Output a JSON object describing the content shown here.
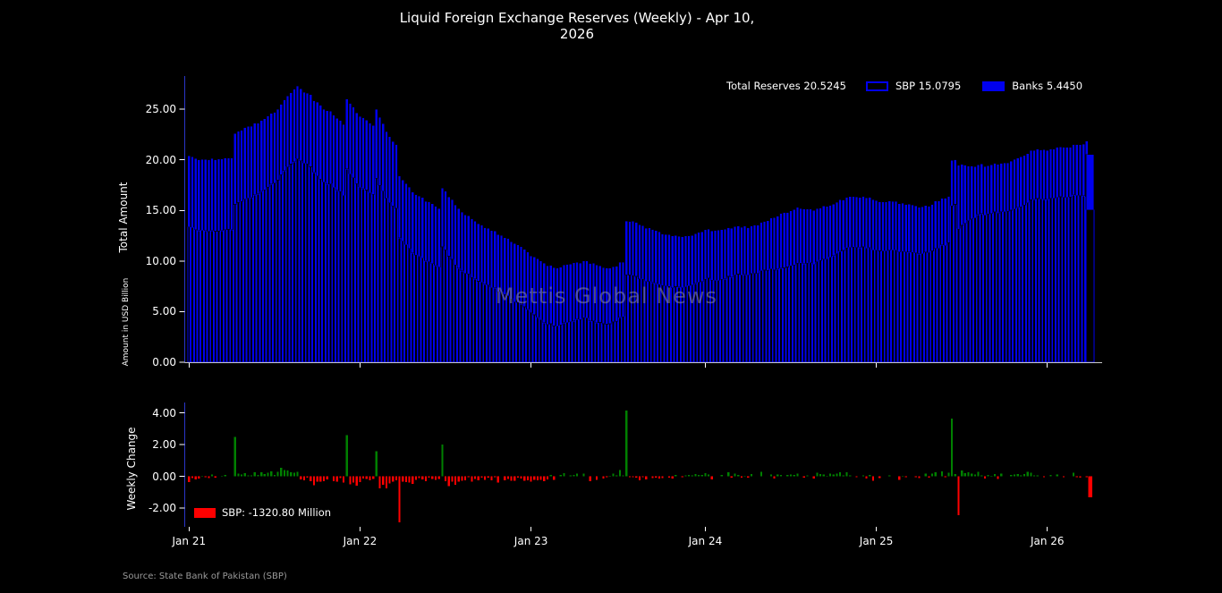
{
  "title": "Liquid Foreign Exchange Reserves (Weekly) - Apr 10, 2026",
  "watermark": "Mettis Global News",
  "source": "Source: State Bank of Pakistan (SBP)",
  "legend": {
    "total_label": "Total Reserves 20.5245",
    "sbp_label": "SBP 15.0795",
    "banks_label": "Banks 5.4450"
  },
  "bottom_legend_label": "SBP: -1320.80 Million",
  "axes": {
    "top": {
      "ylabel_primary": "Total Amount",
      "ylabel_secondary": "Amount in USD Billion",
      "ytick_labels": [
        "0.00",
        "5.00",
        "10.00",
        "15.00",
        "20.00",
        "25.00"
      ],
      "ytick_values": [
        0,
        5,
        10,
        15,
        20,
        25
      ],
      "ylim": [
        0,
        28.3
      ]
    },
    "bottom": {
      "ylabel": "Weekly Change",
      "ytick_labels": [
        "4.00",
        "2.00",
        "0.00",
        "-2.00"
      ],
      "ytick_values": [
        4,
        2,
        0,
        -2
      ],
      "ylim": [
        -3.2,
        4.7
      ]
    },
    "x": {
      "tick_labels": [
        "Jan 21",
        "Jan 22",
        "Jan 23",
        "Jan 24",
        "Jan 25",
        "Jan 26"
      ],
      "tick_weeks": [
        0,
        52,
        104,
        157,
        209,
        261
      ]
    }
  },
  "colors": {
    "background": "#000000",
    "bar_blue": "#0000ee",
    "positive_green": "#008000",
    "negative_red": "#ff0000",
    "spine_blue": "#2a35c8",
    "spine_white": "#cccccc",
    "text": "#ffffff",
    "muted": "#9a9a9a"
  },
  "chart_data": [
    {
      "type": "bar",
      "stacked": true,
      "title": "Liquid Foreign Exchange Reserves (Weekly) - Apr 10, 2026",
      "ylabel": "Total Amount (Amount in USD Billion)",
      "ylim": [
        0,
        28.3
      ],
      "weeks_total": 275,
      "x_range_labels": [
        "Jan 21",
        "Jan 26"
      ],
      "latest": {
        "total": 20.5245,
        "sbp": 15.0795,
        "banks": 5.445
      },
      "series_anchors": {
        "weeks": [
          0,
          3,
          6,
          10,
          13,
          14,
          18,
          22,
          26,
          30,
          33,
          36,
          40,
          44,
          47,
          48,
          52,
          56,
          57,
          60,
          63,
          64,
          68,
          72,
          76,
          77,
          82,
          88,
          92,
          96,
          100,
          104,
          108,
          112,
          116,
          120,
          124,
          128,
          132,
          133,
          138,
          142,
          146,
          150,
          154,
          157,
          162,
          166,
          170,
          175,
          180,
          185,
          190,
          195,
          200,
          205,
          209,
          214,
          218,
          222,
          226,
          231,
          232,
          233,
          234,
          237,
          240,
          244,
          248,
          252,
          257,
          261,
          266,
          270,
          272,
          273,
          274
        ],
        "sbp": [
          13.4,
          13.0,
          12.9,
          13.0,
          13.1,
          15.6,
          16.2,
          16.9,
          17.7,
          19.3,
          20.1,
          19.6,
          18.1,
          17.3,
          16.5,
          19.1,
          17.3,
          16.6,
          18.2,
          16.2,
          15.2,
          12.3,
          10.8,
          10.0,
          9.4,
          11.4,
          9.3,
          8.0,
          7.4,
          6.7,
          5.9,
          4.9,
          3.9,
          3.6,
          4.0,
          4.4,
          3.9,
          3.8,
          4.5,
          8.65,
          8.2,
          7.8,
          7.5,
          7.4,
          7.8,
          8.2,
          8.2,
          8.6,
          8.6,
          9.1,
          9.3,
          9.8,
          9.7,
          10.4,
          11.3,
          11.4,
          11.1,
          11.1,
          10.9,
          10.7,
          11.0,
          11.8,
          15.45,
          15.6,
          13.15,
          14.0,
          14.6,
          14.7,
          14.9,
          15.3,
          16.1,
          16.1,
          16.3,
          16.5,
          16.45,
          16.4,
          15.0795
        ],
        "banks": [
          7.0,
          7.0,
          7.1,
          7.1,
          7.1,
          7.0,
          7.1,
          7.0,
          7.0,
          7.0,
          7.2,
          7.0,
          7.3,
          7.1,
          7.0,
          6.9,
          7.0,
          6.8,
          6.8,
          6.6,
          6.3,
          6.1,
          6.0,
          5.9,
          5.8,
          5.8,
          5.9,
          5.7,
          5.6,
          5.6,
          5.7,
          5.6,
          5.9,
          5.7,
          5.7,
          5.6,
          5.7,
          5.5,
          5.4,
          5.3,
          5.3,
          5.2,
          5.1,
          5.0,
          4.9,
          4.9,
          4.9,
          4.8,
          4.7,
          4.8,
          5.4,
          5.5,
          5.3,
          5.1,
          5.0,
          5.0,
          4.9,
          4.8,
          4.7,
          4.6,
          4.6,
          4.6,
          4.5,
          4.4,
          6.3,
          5.4,
          4.9,
          4.8,
          4.8,
          4.9,
          4.85,
          4.85,
          4.95,
          5.0,
          5.1,
          5.445,
          5.445
        ]
      },
      "legend_entries": [
        "Total Reserves 20.5245",
        "SBP 15.0795",
        "Banks 5.4450"
      ],
      "legend_position": "upper right"
    },
    {
      "type": "bar",
      "title": "Weekly Change (SBP)",
      "ylabel": "Weekly Change",
      "ylim": [
        -3.2,
        4.7
      ],
      "derived_from": "week-over-week difference of SBP series above",
      "latest_change_million": -1320.8,
      "notable_changes": {
        "weeks": [
          14,
          33,
          48,
          57,
          64,
          77,
          133,
          232,
          234,
          274
        ],
        "values": [
          2.5,
          1.1,
          2.6,
          1.6,
          -2.9,
          2.0,
          4.15,
          3.65,
          -2.45,
          -1.32
        ]
      },
      "legend_entries": [
        "SBP: -1320.80 Million"
      ],
      "legend_position": "lower left"
    }
  ]
}
